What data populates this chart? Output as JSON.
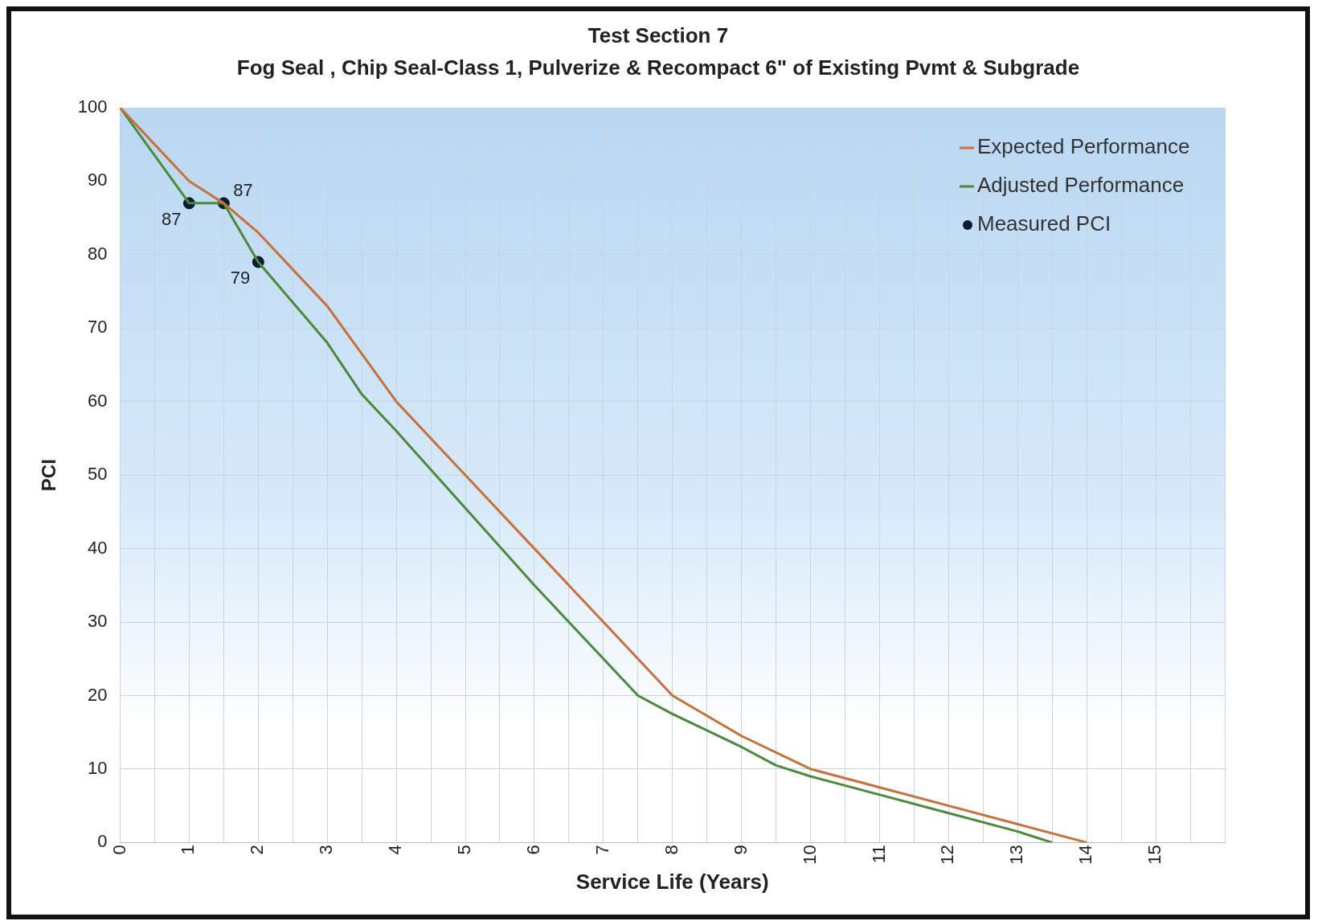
{
  "chart_data": {
    "type": "line",
    "title": "Test Section 7",
    "subtitle": "Fog Seal , Chip Seal-Class 1, Pulverize & Recompact 6\" of Existing Pvmt & Subgrade",
    "xlabel": "Service Life (Years)",
    "ylabel": "PCI",
    "xlim": [
      0,
      16
    ],
    "xticks": [
      0,
      {
        "value": 0.5,
        "label": null
      },
      1,
      {
        "value": 1.5,
        "label": null
      },
      2,
      {
        "value": 2.5,
        "label": null
      },
      3,
      {
        "value": 3.5,
        "label": null
      },
      4,
      {
        "value": 4.5,
        "label": null
      },
      5,
      {
        "value": 5.5,
        "label": null
      },
      6,
      {
        "value": 6.5,
        "label": null
      },
      7,
      {
        "value": 7.5,
        "label": null
      },
      8,
      {
        "value": 8.5,
        "label": null
      },
      9,
      {
        "value": 9.5,
        "label": null
      },
      10,
      {
        "value": 10.5,
        "label": null
      },
      11,
      {
        "value": 11.5,
        "label": null
      },
      12,
      {
        "value": 12.5,
        "label": null
      },
      13,
      {
        "value": 13.5,
        "label": null
      },
      14,
      {
        "value": 14.5,
        "label": null
      },
      15,
      {
        "value": 15.5,
        "label": null
      },
      {
        "value": 16,
        "label": null
      }
    ],
    "ylim": [
      0,
      100
    ],
    "yticks": [
      0,
      10,
      20,
      30,
      40,
      50,
      60,
      70,
      80,
      90,
      100
    ],
    "grid": true,
    "legend": "top right",
    "series": [
      {
        "name": "Expected Performance",
        "color": "#c8703a",
        "marker": "none",
        "x": [
          0,
          1,
          1.5,
          2,
          3,
          4,
          5,
          6,
          7,
          7.5,
          8,
          9,
          10,
          11,
          12,
          13,
          14
        ],
        "values": [
          100,
          90,
          87,
          83,
          73,
          60,
          50,
          40,
          30,
          25,
          20,
          14.5,
          10,
          7.5,
          5,
          2.5,
          0
        ]
      },
      {
        "name": "Adjusted Performance",
        "color": "#4a8a3a",
        "marker": "none",
        "x": [
          0,
          1,
          1.5,
          2,
          3,
          3.5,
          4,
          5,
          6,
          7,
          7.5,
          8,
          9,
          9.5,
          10,
          11,
          12,
          13,
          13.5
        ],
        "values": [
          100,
          87,
          87,
          79,
          68,
          61,
          56,
          45.5,
          35,
          25,
          20,
          17.5,
          13,
          10.5,
          9,
          6.5,
          4,
          1.5,
          0
        ]
      },
      {
        "name": "Measured PCI",
        "type": "scatter",
        "color": "#0d1a33",
        "marker": "circle",
        "x": [
          1,
          1.5,
          2
        ],
        "values": [
          87,
          87,
          79
        ],
        "value_labels": [
          "87",
          "87",
          "79"
        ]
      }
    ]
  }
}
